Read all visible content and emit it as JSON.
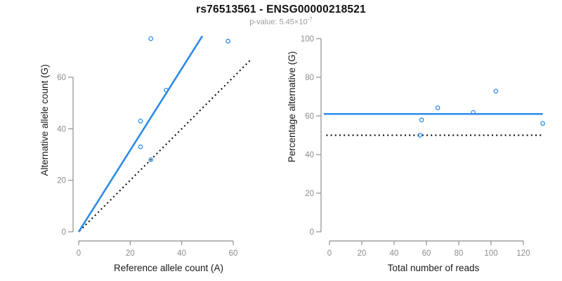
{
  "header": {
    "title": "rs76513561 - ENSG00000218521",
    "subtitle_prefix": "p-value: 5.45×10",
    "subtitle_exponent": "-7"
  },
  "colors": {
    "accent_blue": "#2d8be7",
    "dotted_line": "#000000",
    "axis_line": "#8e8e8e",
    "tick_text": "#8c8c8c",
    "label_text": "#1a1a1a",
    "subtitle_text": "#9b9b9b"
  },
  "chart_data": [
    {
      "type": "scatter",
      "xlabel": "Reference allele count (A)",
      "ylabel": "Alternative allele count (G)",
      "xlim": [
        0,
        67
      ],
      "ylim": [
        0,
        78
      ],
      "xticks": [
        0,
        20,
        40,
        60
      ],
      "yticks": [
        0,
        20,
        40,
        60
      ],
      "points": [
        [
          28,
          75
        ],
        [
          58,
          74
        ],
        [
          34,
          55
        ],
        [
          24,
          43
        ],
        [
          24,
          33
        ],
        [
          28,
          28
        ]
      ],
      "lines": [
        {
          "name": "identity-line",
          "style": "dotted",
          "color": "black",
          "x1": 0.3,
          "y1": 0.3,
          "x2": 67,
          "y2": 67
        },
        {
          "name": "regression-line",
          "style": "solid",
          "color": "accent",
          "x1": 0,
          "y1": 0,
          "x2": 48,
          "y2": 76
        }
      ]
    },
    {
      "type": "scatter",
      "xlabel": "Total number of reads",
      "ylabel": "Percentage alternative (G)",
      "xlim": [
        0,
        132
      ],
      "ylim": [
        0,
        100
      ],
      "xticks": [
        0,
        20,
        40,
        60,
        80,
        100,
        120
      ],
      "yticks": [
        0,
        20,
        40,
        60,
        80,
        100
      ],
      "points": [
        [
          103,
          72.8
        ],
        [
          132,
          56.1
        ],
        [
          89,
          61.8
        ],
        [
          67,
          64.2
        ],
        [
          57,
          57.9
        ],
        [
          56,
          50
        ]
      ],
      "lines": [
        {
          "name": "fifty-percent-line",
          "style": "dotted",
          "color": "black",
          "x1": -2,
          "y1": 50,
          "x2": 132,
          "y2": 50
        },
        {
          "name": "mean-percentage-line",
          "style": "solid",
          "color": "accent",
          "x1": -3.5,
          "y1": 61,
          "x2": 132,
          "y2": 61
        }
      ]
    }
  ]
}
